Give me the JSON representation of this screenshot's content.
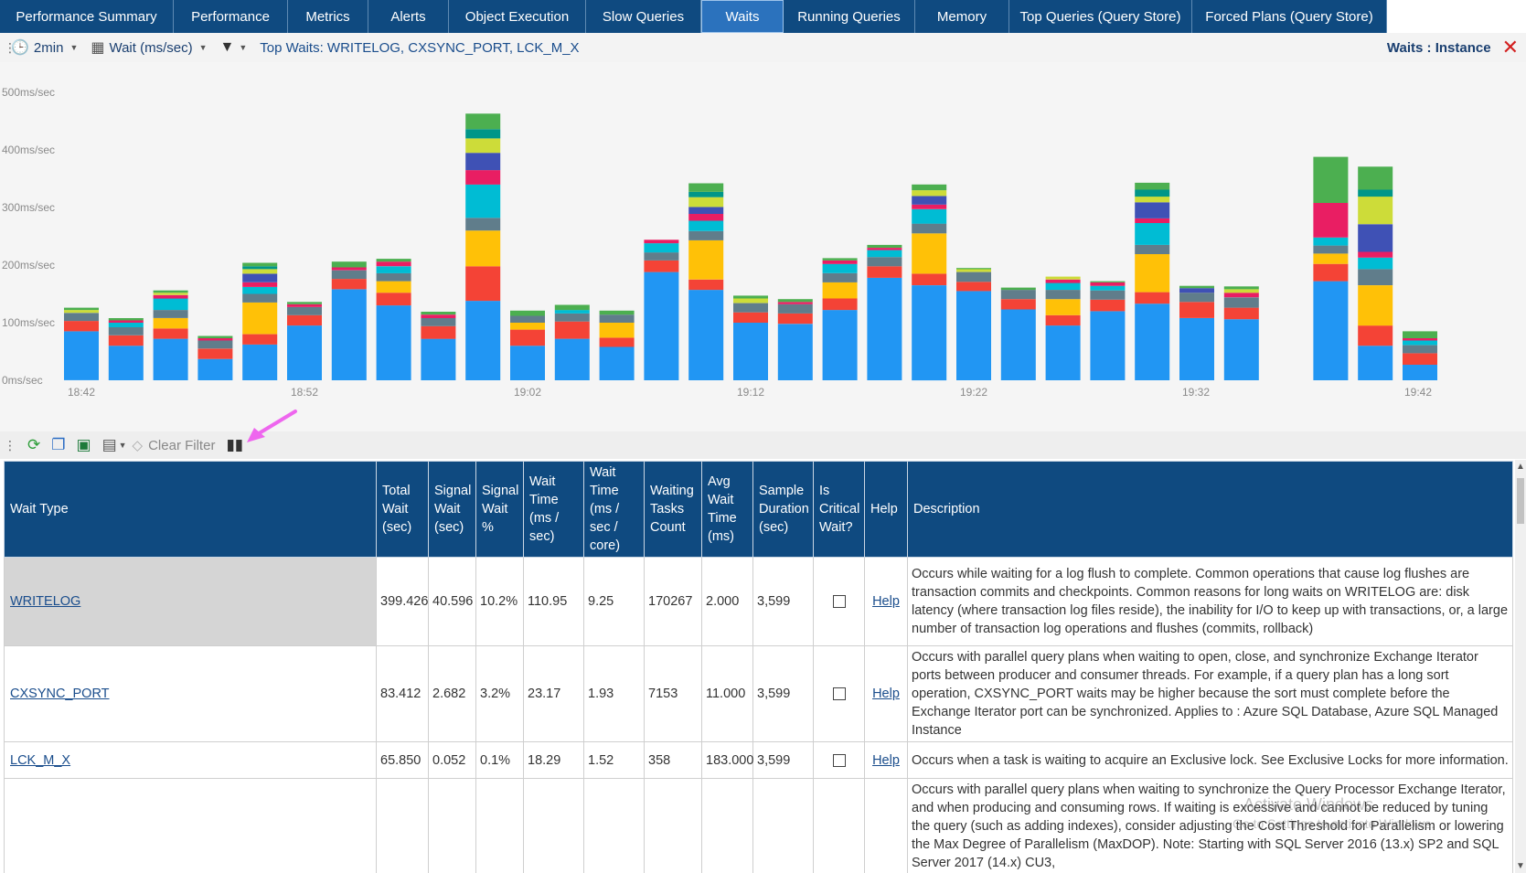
{
  "tabs": [
    {
      "label": "Performance Summary",
      "width": 190
    },
    {
      "label": "Performance",
      "width": 125
    },
    {
      "label": "Metrics",
      "width": 88
    },
    {
      "label": "Alerts",
      "width": 88
    },
    {
      "label": "Object Execution",
      "width": 150
    },
    {
      "label": "Slow Queries",
      "width": 126
    },
    {
      "label": "Waits",
      "width": 90,
      "active": true
    },
    {
      "label": "Running Queries",
      "width": 144
    },
    {
      "label": "Memory",
      "width": 103
    },
    {
      "label": "Top Queries (Query Store)",
      "width": 200
    },
    {
      "label": "Forced Plans (Query Store)",
      "width": 213
    }
  ],
  "toolbar": {
    "interval": "2min",
    "metric": "Wait (ms/sec)",
    "top_waits": "Top Waits: WRITELOG, CXSYNC_PORT, LCK_M_X",
    "panel_title": "Waits : Instance"
  },
  "chart_data": {
    "type": "bar",
    "stacked": true,
    "ylabel": "",
    "ylim": [
      0,
      500
    ],
    "y_ticks": [
      "0ms/sec",
      "100ms/sec",
      "200ms/sec",
      "300ms/sec",
      "400ms/sec",
      "500ms/sec"
    ],
    "x_ticks": [
      "18:42",
      "18:52",
      "19:02",
      "19:12",
      "19:22",
      "19:32",
      "19:42"
    ],
    "colors": [
      "#2196f3",
      "#f44336",
      "#ffc107",
      "#607d8b",
      "#00bcd4",
      "#e91e63",
      "#3f51b5",
      "#cddc39",
      "#009688",
      "#4caf50"
    ],
    "bars": [
      [
        85,
        18,
        0,
        14,
        0,
        0,
        0,
        5,
        0,
        4
      ],
      [
        60,
        18,
        0,
        14,
        8,
        4,
        0,
        0,
        0,
        4
      ],
      [
        72,
        18,
        18,
        14,
        20,
        6,
        0,
        4,
        0,
        4
      ],
      [
        37,
        18,
        0,
        14,
        0,
        4,
        0,
        0,
        0,
        4
      ],
      [
        62,
        18,
        55,
        15,
        12,
        8,
        15,
        8,
        5,
        6
      ],
      [
        95,
        18,
        0,
        14,
        0,
        5,
        0,
        0,
        0,
        4
      ],
      [
        158,
        18,
        0,
        15,
        0,
        5,
        0,
        0,
        0,
        10
      ],
      [
        130,
        22,
        20,
        14,
        12,
        8,
        0,
        0,
        0,
        5
      ],
      [
        72,
        22,
        0,
        14,
        0,
        6,
        0,
        0,
        0,
        5
      ],
      [
        138,
        60,
        62,
        22,
        58,
        25,
        30,
        25,
        16,
        27
      ],
      [
        60,
        28,
        12,
        12,
        0,
        0,
        0,
        0,
        0,
        9
      ],
      [
        72,
        30,
        0,
        14,
        6,
        0,
        0,
        0,
        0,
        9
      ],
      [
        58,
        16,
        26,
        14,
        0,
        0,
        0,
        0,
        0,
        7
      ],
      [
        188,
        20,
        0,
        14,
        16,
        6,
        0,
        0,
        0,
        0
      ],
      [
        157,
        18,
        68,
        16,
        18,
        12,
        12,
        17,
        9,
        15
      ],
      [
        100,
        18,
        0,
        16,
        0,
        0,
        0,
        8,
        0,
        5
      ],
      [
        98,
        18,
        0,
        16,
        0,
        4,
        0,
        0,
        0,
        5
      ],
      [
        122,
        20,
        28,
        16,
        16,
        6,
        0,
        0,
        0,
        4
      ],
      [
        178,
        20,
        0,
        16,
        12,
        4,
        0,
        0,
        0,
        5
      ],
      [
        165,
        20,
        70,
        17,
        25,
        8,
        15,
        10,
        0,
        10
      ],
      [
        155,
        16,
        0,
        17,
        0,
        0,
        0,
        5,
        0,
        2
      ],
      [
        123,
        18,
        0,
        16,
        0,
        0,
        0,
        0,
        0,
        4
      ],
      [
        95,
        18,
        28,
        16,
        12,
        6,
        0,
        5,
        0,
        0
      ],
      [
        120,
        20,
        0,
        16,
        8,
        6,
        0,
        0,
        0,
        2
      ],
      [
        133,
        20,
        66,
        16,
        38,
        8,
        28,
        10,
        12,
        12
      ],
      [
        108,
        28,
        0,
        16,
        0,
        0,
        8,
        0,
        0,
        4
      ],
      [
        106,
        20,
        0,
        18,
        0,
        8,
        0,
        6,
        0,
        5
      ],
      [
        0,
        0,
        0,
        0,
        0,
        0,
        0,
        0,
        0,
        0
      ],
      [
        172,
        30,
        18,
        14,
        14,
        60,
        0,
        0,
        0,
        80
      ],
      [
        60,
        35,
        70,
        28,
        20,
        10,
        48,
        48,
        12,
        40
      ],
      [
        27,
        20,
        0,
        14,
        8,
        4,
        0,
        0,
        0,
        12
      ]
    ]
  },
  "gridbar": {
    "clear_filter": "Clear Filter"
  },
  "table": {
    "headers": [
      "Wait Type",
      "Total Wait (sec)",
      "Signal Wait (sec)",
      "Signal Wait %",
      "Wait Time (ms / sec)",
      "Wait Time (ms / sec / core)",
      "Waiting Tasks Count",
      "Avg Wait Time (ms)",
      "Sample Duration (sec)",
      "Is Critical Wait?",
      "Help",
      "Description"
    ],
    "rows": [
      {
        "wait_type": "WRITELOG",
        "total_wait": "399.426",
        "signal_wait": "40.596",
        "signal_pct": "10.2%",
        "wait_ms_sec": "110.95",
        "wait_ms_sec_core": "9.25",
        "waiting_tasks": "170267",
        "avg_wait": "2.000",
        "sample_duration": "3,599",
        "help": "Help",
        "description": "Occurs while waiting for a log flush to complete. Common operations that cause log flushes are transaction commits and checkpoints. Common reasons for long waits on WRITELOG are: disk latency (where transaction log files reside), the inability for I/O to keep up with transactions, or, a large number of transaction log operations and flushes (commits, rollback)"
      },
      {
        "wait_type": "CXSYNC_PORT",
        "total_wait": "83.412",
        "signal_wait": "2.682",
        "signal_pct": "3.2%",
        "wait_ms_sec": "23.17",
        "wait_ms_sec_core": "1.93",
        "waiting_tasks": "7153",
        "avg_wait": "11.000",
        "sample_duration": "3,599",
        "help": "Help",
        "description": "Occurs with parallel query plans when waiting to open, close, and synchronize Exchange Iterator ports between producer and consumer threads. For example, if a query plan has a long sort operation, CXSYNC_PORT waits may be higher because the sort must complete before the Exchange Iterator port can be synchronized.     Applies to : Azure SQL Database, Azure SQL Managed Instance"
      },
      {
        "wait_type": "LCK_M_X",
        "total_wait": "65.850",
        "signal_wait": "0.052",
        "signal_pct": "0.1%",
        "wait_ms_sec": "18.29",
        "wait_ms_sec_core": "1.52",
        "waiting_tasks": "358",
        "avg_wait": "183.000",
        "sample_duration": "3,599",
        "help": "Help",
        "description": "Occurs when a task is waiting to acquire an Exclusive lock. See Exclusive Locks for more information."
      },
      {
        "wait_type": "",
        "total_wait": "",
        "signal_wait": "",
        "signal_pct": "",
        "wait_ms_sec": "",
        "wait_ms_sec_core": "",
        "waiting_tasks": "",
        "avg_wait": "",
        "sample_duration": "",
        "help": "",
        "description": "Occurs with parallel query plans when waiting to synchronize the Query Processor Exchange Iterator, and when producing and consuming rows. If waiting is excessive and cannot be reduced by tuning the query (such as adding indexes), consider adjusting the Cost Threshold for Parallelism or lowering the Max Degree of Parallelism (MaxDOP). Note:  Starting with SQL Server 2016 (13.x) SP2 and SQL Server 2017 (14.x) CU3,"
      }
    ]
  },
  "watermark": {
    "line1": "Activate Windows",
    "line2": "Go to Settings to activate Windows."
  }
}
